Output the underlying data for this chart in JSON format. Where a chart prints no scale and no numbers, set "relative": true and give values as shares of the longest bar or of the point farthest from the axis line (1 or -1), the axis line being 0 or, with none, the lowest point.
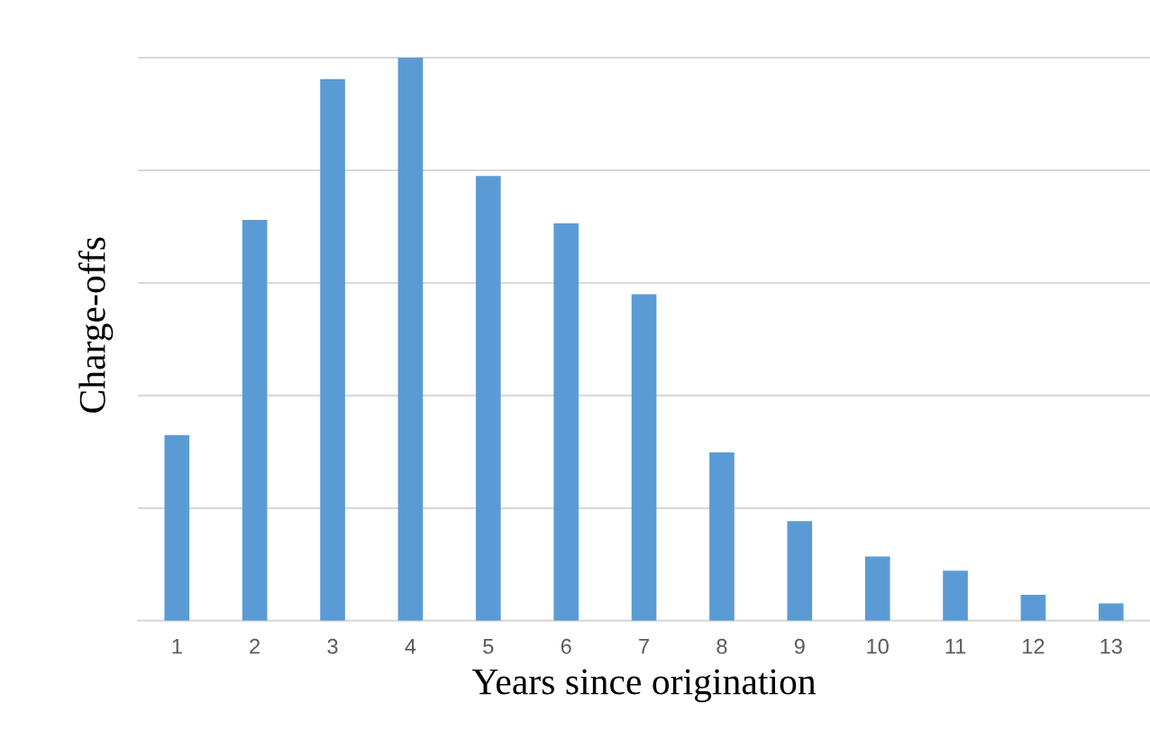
{
  "chart_data": {
    "type": "bar",
    "relative": true,
    "xlabel": "Years since origination",
    "ylabel": "Charge-offs",
    "categories": [
      "1",
      "2",
      "3",
      "4",
      "5",
      "6",
      "7",
      "8",
      "9",
      "10",
      "11",
      "12",
      "13"
    ],
    "values": [
      0.33,
      0.712,
      0.962,
      1,
      0.79,
      0.706,
      0.58,
      0.299,
      0.177,
      0.114,
      0.089,
      0.046,
      0.031
    ],
    "color": "#5b9bd5",
    "grid": "y",
    "tick_labels": "x"
  }
}
